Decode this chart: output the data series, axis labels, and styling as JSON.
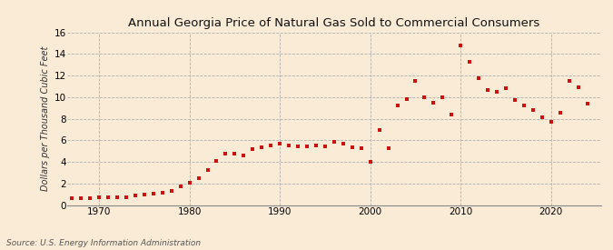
{
  "title": "Annual Georgia Price of Natural Gas Sold to Commercial Consumers",
  "ylabel": "Dollars per Thousand Cubic Feet",
  "source": "Source: U.S. Energy Information Administration",
  "background_color": "#faebd7",
  "dot_color": "#cc1111",
  "ylim": [
    0,
    16
  ],
  "yticks": [
    0,
    2,
    4,
    6,
    8,
    10,
    12,
    14,
    16
  ],
  "xlim": [
    1966.5,
    2025.5
  ],
  "xticks": [
    1970,
    1980,
    1990,
    2000,
    2010,
    2020
  ],
  "years": [
    1967,
    1968,
    1969,
    1970,
    1971,
    1972,
    1973,
    1974,
    1975,
    1976,
    1977,
    1978,
    1979,
    1980,
    1981,
    1982,
    1983,
    1984,
    1985,
    1986,
    1987,
    1988,
    1989,
    1990,
    1991,
    1992,
    1993,
    1994,
    1995,
    1996,
    1997,
    1998,
    1999,
    2000,
    2001,
    2002,
    2003,
    2004,
    2005,
    2006,
    2007,
    2008,
    2009,
    2010,
    2011,
    2012,
    2013,
    2014,
    2015,
    2016,
    2017,
    2018,
    2019,
    2020,
    2021,
    2022,
    2023,
    2024
  ],
  "values": [
    0.65,
    0.65,
    0.65,
    0.68,
    0.7,
    0.72,
    0.75,
    0.85,
    0.95,
    1.05,
    1.15,
    1.3,
    1.75,
    2.1,
    2.5,
    3.25,
    4.05,
    4.75,
    4.8,
    4.6,
    5.15,
    5.35,
    5.55,
    5.7,
    5.5,
    5.4,
    5.45,
    5.55,
    5.45,
    5.85,
    5.65,
    5.35,
    5.25,
    4.0,
    6.95,
    5.25,
    9.25,
    9.85,
    11.5,
    10.0,
    9.5,
    10.0,
    8.4,
    14.8,
    13.3,
    11.8,
    10.7,
    10.5,
    10.8,
    9.7,
    9.2,
    8.8,
    8.1,
    7.75,
    8.55,
    11.5,
    10.9,
    9.4
  ],
  "title_fontsize": 9.5,
  "ylabel_fontsize": 7,
  "tick_fontsize": 7.5,
  "source_fontsize": 6.5,
  "dot_size": 7
}
